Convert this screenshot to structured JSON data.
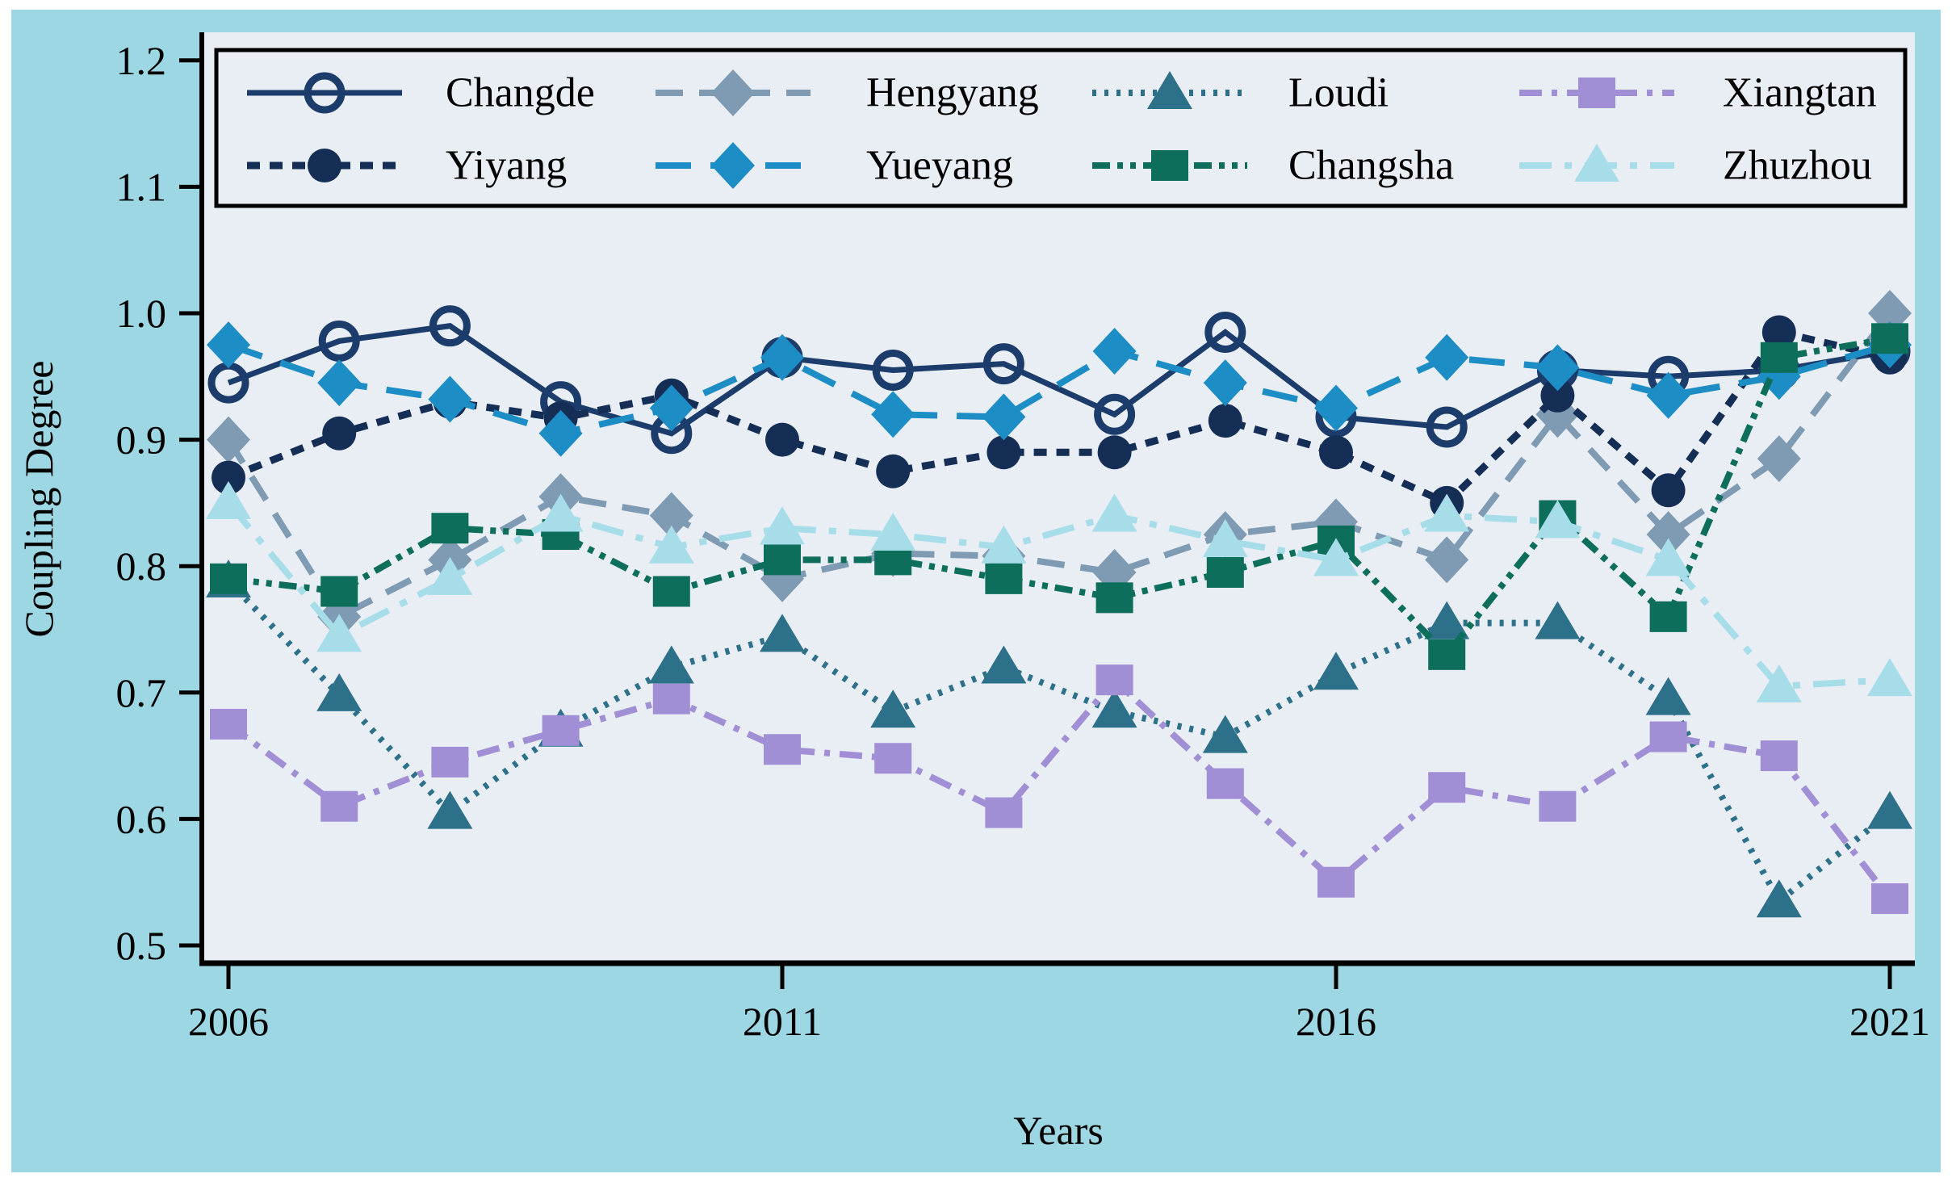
{
  "figure": {
    "xlabel": "Years",
    "ylabel": "Coupling Degree",
    "panel_color": "#9cd7e3",
    "plot_bg_color": "#e9edf4",
    "axis_color": "#000000"
  },
  "chart_data": {
    "type": "line",
    "title": "",
    "xlabel": "Years",
    "ylabel": "Coupling Degree",
    "x": [
      2006,
      2007,
      2008,
      2009,
      2010,
      2011,
      2012,
      2013,
      2014,
      2015,
      2016,
      2017,
      2018,
      2019,
      2020,
      2021
    ],
    "x_tick_labels": [
      "2006",
      "2011",
      "2016",
      "2021"
    ],
    "y_tick_labels": [
      "0.5",
      "0.6",
      "0.7",
      "0.8",
      "0.9",
      "1.0",
      "1.1",
      "1.2"
    ],
    "xlim": [
      2006,
      2021
    ],
    "ylim": [
      0.5,
      1.2
    ],
    "grid": false,
    "legend_position": "top-inside-two-rows",
    "series": [
      {
        "name": "Changde",
        "color": "#1c3c6b",
        "marker": "circle-open",
        "line_style": "solid",
        "values": [
          0.945,
          0.978,
          0.99,
          0.93,
          0.905,
          0.965,
          0.955,
          0.96,
          0.92,
          0.985,
          0.918,
          0.91,
          0.955,
          0.95,
          0.955,
          0.97
        ]
      },
      {
        "name": "Hengyang",
        "color": "#7e9bb3",
        "marker": "diamond",
        "line_style": "long-dash",
        "values": [
          0.9,
          0.76,
          0.805,
          0.855,
          0.84,
          0.79,
          0.81,
          0.808,
          0.795,
          0.825,
          0.835,
          0.805,
          0.92,
          0.825,
          0.885,
          1.0
        ]
      },
      {
        "name": "Loudi",
        "color": "#2d7089",
        "marker": "triangle",
        "line_style": "dotted",
        "values": [
          0.788,
          0.698,
          0.605,
          0.67,
          0.72,
          0.745,
          0.685,
          0.72,
          0.685,
          0.665,
          0.715,
          0.755,
          0.755,
          0.695,
          0.535,
          0.605
        ]
      },
      {
        "name": "Xiangtan",
        "color": "#a18fd6",
        "marker": "square",
        "line_style": "dash-dot",
        "values": [
          0.675,
          0.61,
          0.645,
          0.67,
          0.695,
          0.655,
          0.648,
          0.605,
          0.71,
          0.628,
          0.55,
          0.625,
          0.61,
          0.665,
          0.65,
          0.537
        ]
      },
      {
        "name": "Yiyang",
        "color": "#152e56",
        "marker": "circle",
        "line_style": "dashed",
        "values": [
          0.87,
          0.905,
          0.93,
          0.917,
          0.935,
          0.9,
          0.875,
          0.89,
          0.89,
          0.915,
          0.89,
          0.85,
          0.935,
          0.86,
          0.985,
          0.965
        ]
      },
      {
        "name": "Yueyang",
        "color": "#1d8dc6",
        "marker": "diamond",
        "line_style": "long-dash",
        "values": [
          0.975,
          0.945,
          0.932,
          0.905,
          0.925,
          0.965,
          0.92,
          0.918,
          0.97,
          0.945,
          0.925,
          0.965,
          0.957,
          0.935,
          0.95,
          0.975
        ]
      },
      {
        "name": "Changsha",
        "color": "#0d6e5b",
        "marker": "square",
        "line_style": "dash-dot-dot",
        "values": [
          0.79,
          0.78,
          0.83,
          0.825,
          0.78,
          0.805,
          0.805,
          0.79,
          0.775,
          0.795,
          0.82,
          0.73,
          0.84,
          0.76,
          0.965,
          0.98
        ]
      },
      {
        "name": "Zhuzhou",
        "color": "#a6dde9",
        "marker": "triangle",
        "line_style": "long-dash-dot",
        "values": [
          0.85,
          0.745,
          0.79,
          0.84,
          0.815,
          0.83,
          0.825,
          0.815,
          0.84,
          0.82,
          0.805,
          0.84,
          0.835,
          0.805,
          0.705,
          0.71
        ]
      }
    ]
  }
}
